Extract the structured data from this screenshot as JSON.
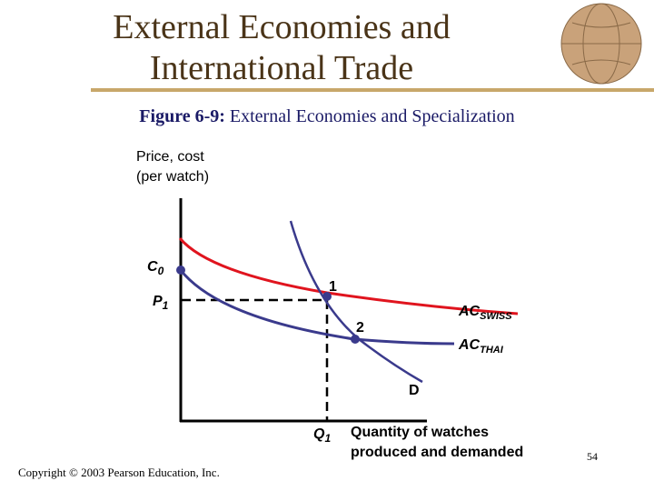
{
  "header": {
    "title_lines": [
      "External Economies and",
      "International Trade"
    ],
    "figure_label": "Figure 6-9:",
    "figure_caption": "External Economies and Specialization"
  },
  "diagram": {
    "y_axis_label_lines": [
      "Price, cost",
      "(per watch)"
    ],
    "c0": {
      "main": "C",
      "sub": "0"
    },
    "p1": {
      "main": "P",
      "sub": "1"
    },
    "point_1": "1",
    "point_2": "2",
    "ac_swiss": {
      "main": "AC",
      "sub": "SWISS"
    },
    "ac_thai": {
      "main": "AC",
      "sub": "THAI"
    },
    "demand": "D",
    "q1": {
      "main": "Q",
      "sub": "1"
    },
    "x_axis_label_lines": [
      "Quantity of watches",
      "produced and demanded"
    ]
  },
  "footer": {
    "copyright": "Copyright © 2003 Pearson Education, Inc.",
    "page_number": "54"
  }
}
